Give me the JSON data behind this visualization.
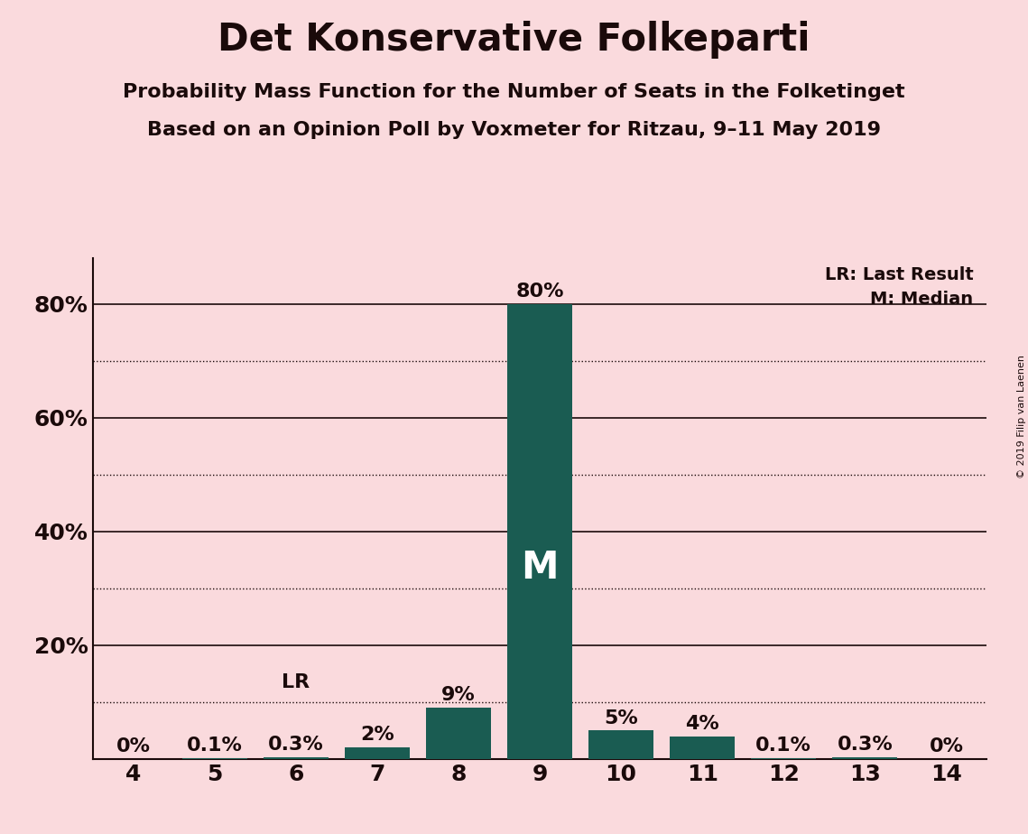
{
  "title": "Det Konservative Folkeparti",
  "subtitle1": "Probability Mass Function for the Number of Seats in the Folketinget",
  "subtitle2": "Based on an Opinion Poll by Voxmeter for Ritzau, 9–11 May 2019",
  "copyright": "© 2019 Filip van Laenen",
  "categories": [
    4,
    5,
    6,
    7,
    8,
    9,
    10,
    11,
    12,
    13,
    14
  ],
  "values": [
    0.0,
    0.001,
    0.003,
    0.02,
    0.09,
    0.8,
    0.05,
    0.04,
    0.001,
    0.003,
    0.0
  ],
  "labels": [
    "0%",
    "0.1%",
    "0.3%",
    "2%",
    "9%",
    "80%",
    "5%",
    "4%",
    "0.1%",
    "0.3%",
    "0%"
  ],
  "bar_color": "#1a5c52",
  "background_color": "#fadadd",
  "text_color": "#1a0a0a",
  "median_seat": 9,
  "lr_seat": 6,
  "median_label": "M",
  "lr_label": "LR",
  "legend_lr": "LR: Last Result",
  "legend_m": "M: Median",
  "ylim": [
    0,
    0.88
  ],
  "yticks": [
    0.0,
    0.2,
    0.4,
    0.6,
    0.8
  ],
  "ytick_labels": [
    "",
    "20%",
    "40%",
    "60%",
    "80%"
  ],
  "solid_lines": [
    0.0,
    0.2,
    0.4,
    0.6,
    0.8
  ],
  "dotted_lines": [
    0.1,
    0.3,
    0.5,
    0.7
  ],
  "title_fontsize": 30,
  "subtitle_fontsize": 16,
  "label_fontsize": 16,
  "tick_fontsize": 18,
  "legend_fontsize": 14,
  "copyright_fontsize": 8
}
